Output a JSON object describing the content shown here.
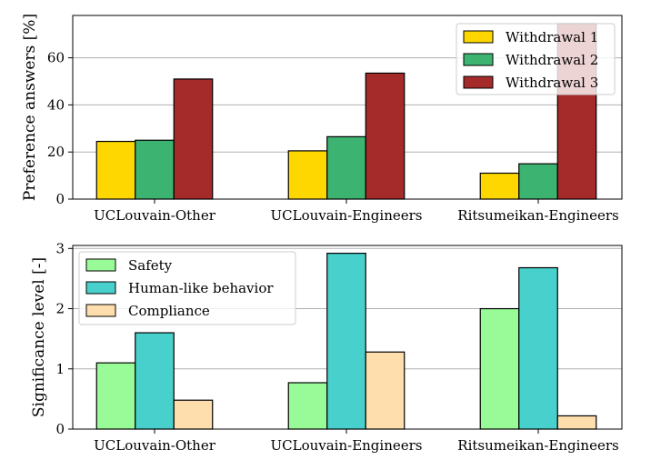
{
  "chart_data": [
    {
      "type": "bar",
      "categories": [
        "UCLouvain-Other",
        "UCLouvain-Engineers",
        "Ritsumeikan-Engineers"
      ],
      "series": [
        {
          "name": "Withdrawal 1",
          "color": "#FFD700",
          "values": [
            24.5,
            20.5,
            11
          ]
        },
        {
          "name": "Withdrawal 2",
          "color": "#3CB371",
          "values": [
            25,
            26.5,
            15
          ]
        },
        {
          "name": "Withdrawal 3",
          "color": "#A52A2A",
          "values": [
            51,
            53.5,
            74.5
          ]
        }
      ],
      "ylabel": "Preference answers [%]",
      "ylim": [
        0,
        78
      ],
      "yticks": [
        0,
        20,
        40,
        60
      ],
      "grid": "y",
      "legend_position": "upper right"
    },
    {
      "type": "bar",
      "categories": [
        "UCLouvain-Other",
        "UCLouvain-Engineers",
        "Ritsumeikan-Engineers"
      ],
      "series": [
        {
          "name": "Safety",
          "color": "#98FB98",
          "values": [
            1.1,
            0.77,
            2.0
          ]
        },
        {
          "name": "Human-like behavior",
          "color": "#48D1CC",
          "values": [
            1.6,
            2.92,
            2.68
          ]
        },
        {
          "name": "Compliance",
          "color": "#FFDEAD",
          "values": [
            0.48,
            1.28,
            0.22
          ]
        }
      ],
      "ylabel": "Significance level [-]",
      "ylim": [
        0,
        3.05
      ],
      "yticks": [
        0,
        1,
        2,
        3
      ],
      "grid": "y",
      "legend_position": "upper left"
    }
  ]
}
